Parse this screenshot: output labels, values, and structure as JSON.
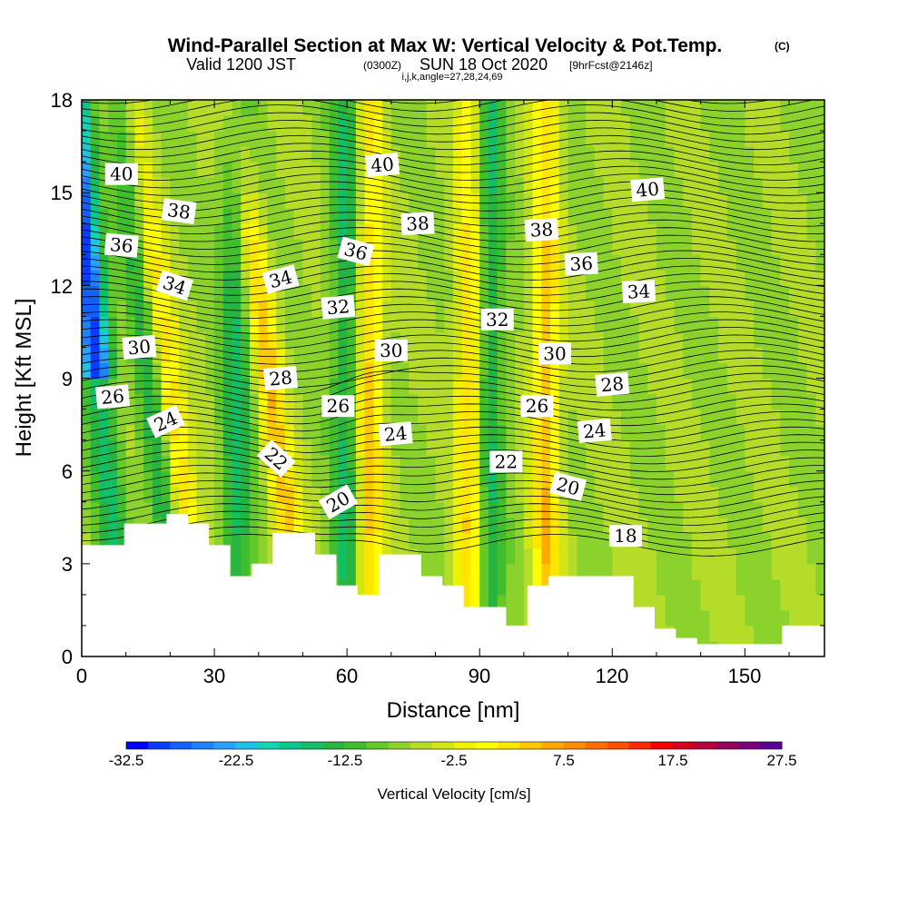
{
  "chart_data": {
    "type": "heatmap",
    "title_main": "Wind-Parallel Section at Max W: Vertical Velocity & Pot.Temp.",
    "title_mark": "(C)",
    "subtitle_a": "Valid 1200 JST",
    "subtitle_b": "(0300Z)",
    "subtitle_c": "SUN 18 Oct 2020",
    "subtitle_d": "[9hrFcst@2146z]",
    "subtitle_line3": "i,j,k,angle=27,28,24,69",
    "xlabel": "Distance [nm]",
    "ylabel": "Height [Kft MSL]",
    "xlim": [
      0,
      168
    ],
    "ylim": [
      0,
      18
    ],
    "x_ticks": [
      "0",
      "30",
      "60",
      "90",
      "120",
      "150"
    ],
    "y_ticks": [
      "0",
      "3",
      "6",
      "9",
      "12",
      "15",
      "18"
    ],
    "colorbar": {
      "label": "Vertical Velocity [cm/s]",
      "tick_labels": [
        "-32.5",
        "-22.5",
        "-12.5",
        "-2.5",
        "7.5",
        "17.5",
        "27.5"
      ],
      "range": [
        -32.5,
        27.5
      ],
      "step": 2.5,
      "colors": [
        "#0000ff",
        "#0a3cff",
        "#1460ff",
        "#1e82ff",
        "#28a0ff",
        "#1ec3e6",
        "#14d2b4",
        "#0ac88c",
        "#14be64",
        "#28b441",
        "#41be2d",
        "#64c828",
        "#8cd22d",
        "#b4dc28",
        "#d2e614",
        "#f0f000",
        "#ffff00",
        "#ffe600",
        "#ffc800",
        "#ffaa00",
        "#ff8c00",
        "#ff6e00",
        "#ff5000",
        "#ff2800",
        "#f50000",
        "#d2001e",
        "#b4003c",
        "#96005a",
        "#780078",
        "#5a0096"
      ]
    },
    "contour_levels": [
      18,
      20,
      22,
      24,
      26,
      28,
      30,
      32,
      34,
      36,
      38,
      40
    ],
    "contour_label_text": [
      "40",
      "40",
      "40",
      "38",
      "38",
      "38",
      "36",
      "36",
      "36",
      "34",
      "34",
      "34",
      "32",
      "32",
      "30",
      "30",
      "30",
      "28",
      "28",
      "26",
      "26",
      "26",
      "24",
      "24",
      "24",
      "22",
      "22",
      "20",
      "20",
      "18"
    ],
    "terrain_height_kft": [
      3.6,
      3.6,
      4.3,
      4.3,
      4.6,
      4.3,
      3.6,
      2.6,
      3.0,
      4.0,
      4.0,
      3.3,
      2.3,
      2.0,
      3.3,
      3.3,
      2.6,
      2.3,
      1.6,
      1.6,
      1.0,
      2.3,
      2.6,
      2.6,
      2.6,
      2.6,
      1.6,
      0.9,
      0.6,
      0.4,
      0.4,
      0.4,
      0.4,
      1.0,
      1.0,
      1.0
    ],
    "updrafts_nm": [
      22,
      45,
      65,
      88,
      105
    ],
    "downdrafts_nm": [
      3,
      15,
      35,
      60,
      92
    ]
  }
}
